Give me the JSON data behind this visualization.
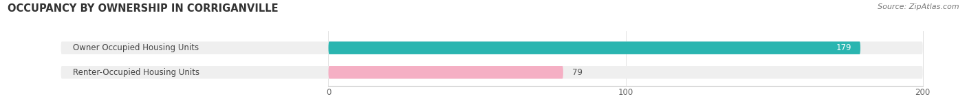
{
  "title": "OCCUPANCY BY OWNERSHIP IN CORRIGANVILLE",
  "source": "Source: ZipAtlas.com",
  "categories": [
    "Owner Occupied Housing Units",
    "Renter-Occupied Housing Units"
  ],
  "values": [
    179,
    79
  ],
  "bar_colors": [
    "#2ab5b0",
    "#f5afc4"
  ],
  "bar_bg_color": "#efefef",
  "xlim": [
    -90,
    210
  ],
  "xaxis_min": 0,
  "xaxis_max": 200,
  "xticks": [
    0,
    100,
    200
  ],
  "title_fontsize": 10.5,
  "label_fontsize": 8.5,
  "value_fontsize": 8.5,
  "source_fontsize": 8,
  "background_color": "#ffffff",
  "bar_height": 0.52,
  "value_179_color": "#ffffff",
  "value_79_color": "#555555"
}
